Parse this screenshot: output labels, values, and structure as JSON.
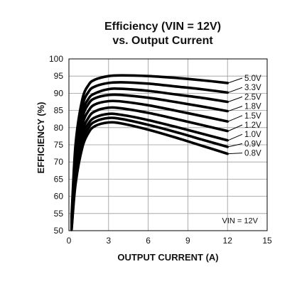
{
  "chart_data": {
    "type": "line",
    "title_line1": "Efficiency (VIN = 12V)",
    "title_line2": "vs. Output Current",
    "xlabel": "OUTPUT CURRENT (A)",
    "ylabel": "EFFICIENCY (%)",
    "xlim": [
      0,
      15
    ],
    "ylim": [
      50,
      100
    ],
    "xticks": [
      "0",
      "3",
      "6",
      "9",
      "12",
      "15"
    ],
    "yticks": [
      "50",
      "55",
      "60",
      "65",
      "70",
      "75",
      "80",
      "85",
      "90",
      "95",
      "100"
    ],
    "grid": true,
    "annotation": "VIN = 12V",
    "series": [
      {
        "name": "5.0V",
        "x": [
          0.2,
          0.5,
          1,
          1.5,
          2,
          3,
          4,
          6,
          8,
          10,
          12
        ],
        "y": [
          54,
          75,
          88,
          92.5,
          94,
          95,
          95.2,
          95,
          94.5,
          93.8,
          93
        ]
      },
      {
        "name": "3.3V",
        "x": [
          0.2,
          0.5,
          1,
          1.5,
          2,
          3,
          4,
          6,
          8,
          10,
          12
        ],
        "y": [
          53,
          73,
          86,
          90.5,
          92,
          93,
          93.2,
          92.8,
          92,
          91.2,
          90.2
        ]
      },
      {
        "name": "2.5V",
        "x": [
          0.2,
          0.5,
          1,
          1.5,
          2,
          3,
          4,
          6,
          8,
          10,
          12
        ],
        "y": [
          52.5,
          71.5,
          84,
          88.5,
          90,
          91.2,
          91.3,
          90.7,
          89.7,
          88.7,
          87.5
        ]
      },
      {
        "name": "1.8V",
        "x": [
          0.2,
          0.5,
          1,
          1.5,
          2,
          3,
          4,
          6,
          8,
          10,
          12
        ],
        "y": [
          52,
          70,
          82.5,
          87,
          88.6,
          89.5,
          89.5,
          88.7,
          87.5,
          86.2,
          84.8
        ]
      },
      {
        "name": "1.5V",
        "x": [
          0.2,
          0.5,
          1,
          1.5,
          2,
          3,
          4,
          6,
          8,
          10,
          12
        ],
        "y": [
          51.5,
          68.5,
          80.5,
          85,
          86.8,
          87.7,
          87.6,
          86.5,
          85,
          83.4,
          81.8
        ]
      },
      {
        "name": "1.2V",
        "x": [
          0.2,
          0.5,
          1,
          1.5,
          2,
          3,
          4,
          6,
          8,
          10,
          12
        ],
        "y": [
          51,
          67,
          78.5,
          83,
          84.8,
          85.8,
          85.6,
          84.3,
          82.6,
          80.8,
          79
        ]
      },
      {
        "name": "1.0V",
        "x": [
          0.2,
          0.5,
          1,
          1.5,
          2,
          3,
          4,
          6,
          8,
          10,
          12
        ],
        "y": [
          50.8,
          65.5,
          77,
          81.3,
          83,
          84,
          83.7,
          82.2,
          80.3,
          78.3,
          76.3
        ]
      },
      {
        "name": "0.9V",
        "x": [
          0.2,
          0.5,
          1,
          1.5,
          2,
          3,
          4,
          6,
          8,
          10,
          12
        ],
        "y": [
          50.5,
          64.5,
          75.5,
          80,
          81.8,
          82.8,
          82.5,
          80.8,
          78.8,
          76.6,
          74.4
        ]
      },
      {
        "name": "0.8V",
        "x": [
          0.2,
          0.5,
          1,
          1.5,
          2,
          3,
          4,
          6,
          8,
          10,
          12
        ],
        "y": [
          50.2,
          63.5,
          74,
          78.6,
          80.5,
          81.5,
          81.2,
          79.4,
          77.2,
          74.8,
          72.4
        ]
      }
    ]
  }
}
